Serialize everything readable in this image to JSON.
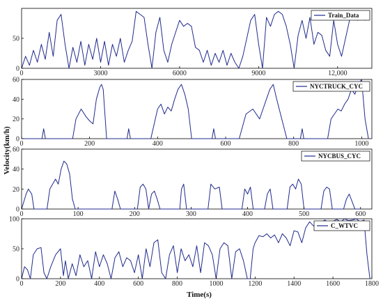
{
  "figure": {
    "ylabel": "Velocity(km/h)",
    "xlabel": "Time(s)"
  },
  "colors": {
    "line": "#1f2a8c",
    "axis": "#000000",
    "highlight": "#d7d24a"
  },
  "chart_data": [
    {
      "type": "line",
      "legend": "Train_Data",
      "xlim": [
        0,
        13300
      ],
      "ylim": [
        0,
        100
      ],
      "xticks": [
        0,
        3000,
        6000,
        9000,
        12000
      ],
      "xtick_labels": [
        "0",
        "3000",
        "6000",
        "9000",
        "12,000"
      ],
      "yticks": [
        0,
        50
      ],
      "series": [
        {
          "x": [
            0,
            150,
            300,
            450,
            600,
            750,
            900,
            1050,
            1200,
            1350,
            1500,
            1650,
            1800,
            1950,
            2100,
            2250,
            2400,
            2550,
            2700,
            2850,
            3000,
            3150,
            3300,
            3450,
            3600,
            3750,
            3900,
            4050,
            4200,
            4350,
            4500,
            4650,
            4800,
            4950,
            5100,
            5250,
            5400,
            5550,
            5700,
            5850,
            6000,
            6150,
            6300,
            6450,
            6600,
            6750,
            6900,
            7050,
            7200,
            7350,
            7500,
            7650,
            7800,
            7950,
            8100,
            8250,
            8400,
            8550,
            8700,
            8850,
            9000,
            9150,
            9300,
            9450,
            9600,
            9750,
            9900,
            10050,
            10200,
            10350,
            10500,
            10650,
            10800,
            10950,
            11100,
            11250,
            11400,
            11550,
            11700,
            11850,
            12000,
            12150,
            12300,
            12450,
            12600,
            12750,
            12900,
            13050,
            13200
          ],
          "y": [
            0,
            20,
            5,
            30,
            10,
            40,
            15,
            60,
            20,
            80,
            90,
            40,
            0,
            35,
            10,
            45,
            5,
            40,
            15,
            50,
            10,
            45,
            5,
            40,
            20,
            50,
            10,
            30,
            45,
            95,
            90,
            85,
            40,
            0,
            60,
            85,
            30,
            10,
            40,
            60,
            80,
            70,
            75,
            70,
            35,
            30,
            10,
            30,
            5,
            25,
            10,
            30,
            5,
            25,
            10,
            0,
            20,
            50,
            80,
            90,
            40,
            0,
            85,
            70,
            90,
            95,
            90,
            70,
            40,
            0,
            55,
            80,
            50,
            85,
            40,
            60,
            55,
            30,
            20,
            80,
            40,
            20,
            50,
            80,
            90,
            80,
            85,
            80,
            90
          ]
        }
      ]
    },
    {
      "type": "line",
      "legend": "NYCTRUCK_CYC",
      "xlim": [
        0,
        1030
      ],
      "ylim": [
        0,
        60
      ],
      "xticks": [
        0,
        200,
        400,
        600,
        800,
        1000
      ],
      "xtick_labels": [
        "0",
        "200",
        "400",
        "600",
        "800",
        "1000"
      ],
      "yticks": [
        0,
        20,
        40,
        60
      ],
      "series": [
        {
          "x": [
            0,
            60,
            65,
            70,
            100,
            150,
            160,
            175,
            190,
            200,
            210,
            220,
            230,
            235,
            240,
            250,
            310,
            315,
            320,
            360,
            380,
            400,
            410,
            420,
            430,
            440,
            450,
            460,
            470,
            480,
            490,
            500,
            540,
            560,
            565,
            570,
            600,
            640,
            660,
            680,
            700,
            710,
            720,
            730,
            740,
            750,
            780,
            800,
            820,
            825,
            830,
            870,
            900,
            910,
            920,
            930,
            940,
            950,
            960,
            970,
            980,
            990,
            1000,
            1010,
            1020
          ],
          "y": [
            0,
            0,
            10,
            0,
            0,
            0,
            20,
            30,
            22,
            18,
            15,
            40,
            52,
            55,
            50,
            0,
            0,
            10,
            0,
            0,
            0,
            30,
            35,
            25,
            32,
            28,
            40,
            50,
            55,
            45,
            30,
            0,
            0,
            0,
            10,
            0,
            0,
            0,
            25,
            30,
            20,
            30,
            40,
            50,
            55,
            40,
            0,
            0,
            0,
            10,
            0,
            0,
            0,
            20,
            25,
            30,
            28,
            35,
            40,
            50,
            45,
            55,
            60,
            20,
            0
          ]
        }
      ]
    },
    {
      "type": "line",
      "legend": "NYCBUS_CYC",
      "xlim": [
        0,
        620
      ],
      "ylim": [
        0,
        60
      ],
      "xticks": [
        0,
        100,
        200,
        300,
        400,
        500,
        600
      ],
      "xtick_labels": [
        "0",
        "100",
        "200",
        "300",
        "400",
        "500",
        "600"
      ],
      "yticks": [
        0,
        20,
        40,
        60
      ],
      "series": [
        {
          "x": [
            0,
            8,
            12,
            18,
            22,
            28,
            45,
            50,
            55,
            60,
            65,
            70,
            75,
            80,
            85,
            90,
            95,
            160,
            165,
            170,
            175,
            205,
            210,
            215,
            220,
            225,
            230,
            235,
            240,
            245,
            280,
            283,
            287,
            292,
            330,
            335,
            342,
            350,
            355,
            390,
            395,
            400,
            405,
            410,
            430,
            435,
            440,
            445,
            470,
            475,
            480,
            485,
            490,
            495,
            500,
            530,
            535,
            540,
            545,
            550,
            560,
            570,
            575,
            580,
            590,
            600
          ],
          "y": [
            0,
            15,
            20,
            15,
            0,
            0,
            0,
            20,
            25,
            30,
            25,
            40,
            48,
            45,
            35,
            10,
            0,
            0,
            18,
            10,
            0,
            0,
            22,
            25,
            20,
            0,
            15,
            18,
            10,
            0,
            0,
            20,
            25,
            0,
            0,
            25,
            20,
            22,
            0,
            0,
            20,
            15,
            22,
            0,
            0,
            15,
            20,
            0,
            0,
            22,
            25,
            20,
            30,
            25,
            0,
            0,
            18,
            22,
            20,
            0,
            0,
            0,
            10,
            15,
            0,
            0
          ]
        }
      ]
    },
    {
      "type": "line",
      "legend": "C_WTVC",
      "xlim": [
        0,
        1800
      ],
      "ylim": [
        0,
        100
      ],
      "xticks": [
        0,
        200,
        400,
        600,
        800,
        1000,
        1200,
        1400,
        1600,
        1800
      ],
      "xtick_labels": [
        "0",
        "200",
        "400",
        "600",
        "800",
        "1000",
        "1200",
        "1400",
        "1600",
        "1800"
      ],
      "yticks": [
        0,
        50,
        100
      ],
      "series": [
        {
          "x": [
            0,
            15,
            30,
            45,
            60,
            80,
            100,
            115,
            130,
            150,
            175,
            200,
            215,
            225,
            240,
            260,
            280,
            300,
            320,
            340,
            360,
            380,
            400,
            420,
            440,
            460,
            480,
            500,
            520,
            540,
            560,
            580,
            600,
            620,
            640,
            660,
            680,
            700,
            720,
            740,
            760,
            780,
            800,
            820,
            840,
            860,
            880,
            900,
            920,
            940,
            960,
            980,
            1000,
            1020,
            1040,
            1060,
            1080,
            1100,
            1120,
            1140,
            1160,
            1175,
            1190,
            1200,
            1220,
            1240,
            1260,
            1280,
            1300,
            1320,
            1340,
            1360,
            1380,
            1400,
            1420,
            1440,
            1460,
            1480,
            1500,
            1520,
            1540,
            1560,
            1580,
            1600,
            1620,
            1640,
            1660,
            1680,
            1700,
            1720,
            1740,
            1760,
            1775,
            1790
          ],
          "y": [
            0,
            20,
            15,
            0,
            40,
            50,
            52,
            10,
            0,
            20,
            40,
            50,
            5,
            30,
            0,
            25,
            5,
            40,
            20,
            30,
            0,
            45,
            20,
            40,
            25,
            0,
            35,
            45,
            20,
            35,
            30,
            10,
            40,
            0,
            50,
            20,
            60,
            65,
            10,
            0,
            40,
            55,
            10,
            50,
            30,
            40,
            20,
            55,
            10,
            60,
            55,
            40,
            0,
            50,
            60,
            55,
            0,
            45,
            50,
            30,
            0,
            0,
            50,
            60,
            72,
            70,
            75,
            68,
            73,
            60,
            75,
            68,
            55,
            80,
            78,
            60,
            85,
            95,
            88,
            92,
            95,
            98,
            92,
            96,
            99,
            95,
            100,
            97,
            98,
            100,
            95,
            98,
            40,
            0
          ]
        }
      ]
    }
  ]
}
